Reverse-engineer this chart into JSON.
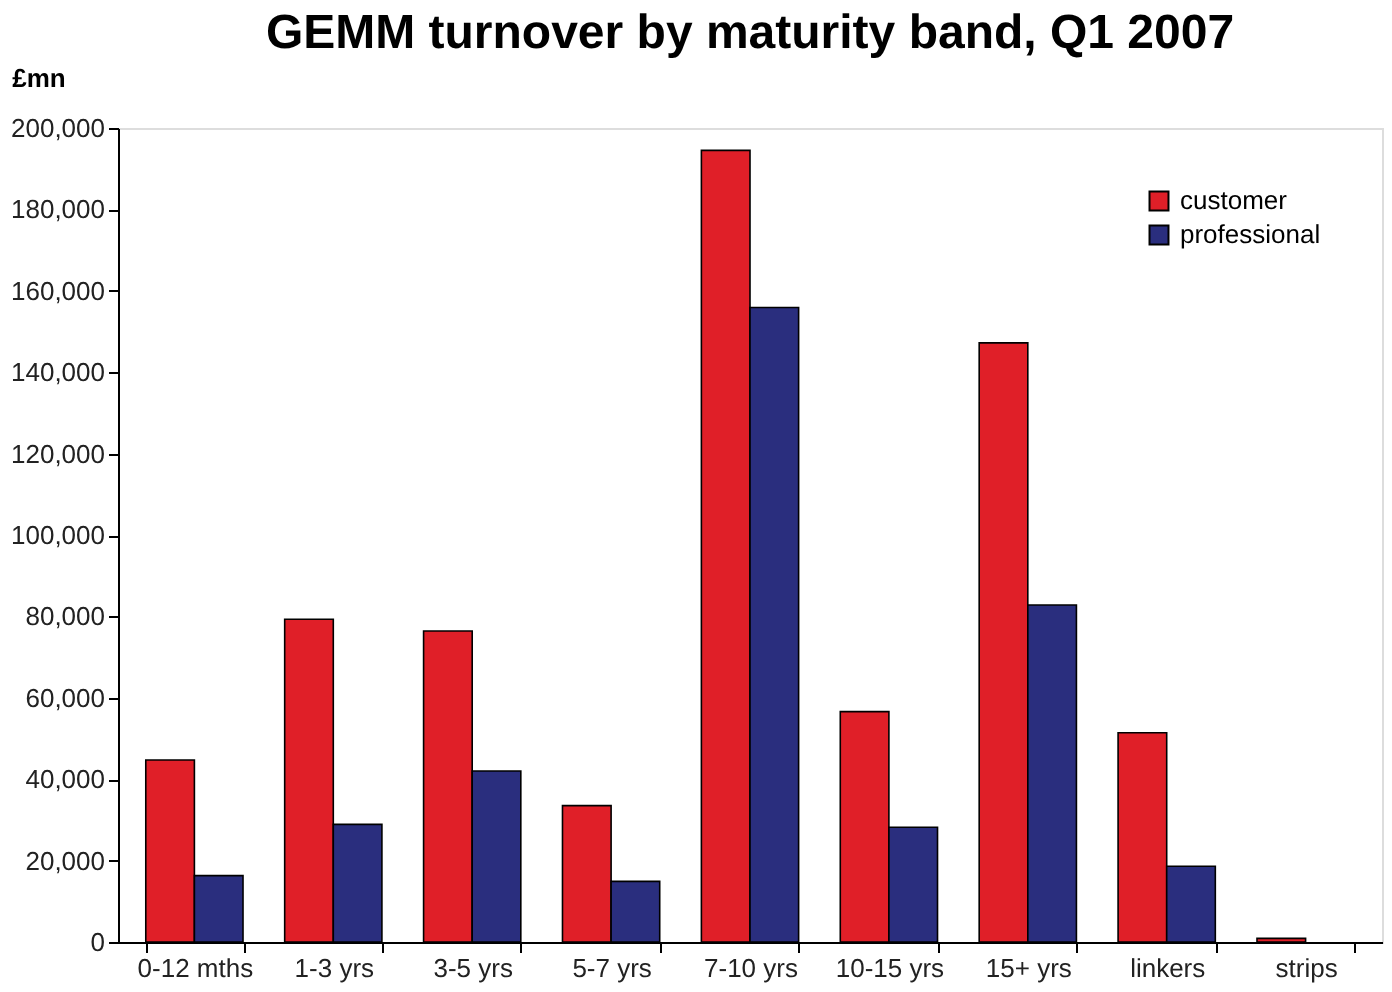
{
  "chart_data": {
    "type": "bar",
    "title": "GEMM turnover by maturity band, Q1 2007",
    "ylabel": "£mn",
    "categories": [
      "0-12 mths",
      "1-3 yrs",
      "3-5 yrs",
      "5-7 yrs",
      "7-10 yrs",
      "10-15 yrs",
      "15+ yrs",
      "linkers",
      "strips"
    ],
    "series": [
      {
        "name": "customer",
        "color": "#e01f28",
        "values": [
          44700,
          79300,
          76400,
          33500,
          194500,
          56600,
          147200,
          51400,
          900
        ]
      },
      {
        "name": "professional",
        "color": "#2a2e7e",
        "values": [
          16300,
          28900,
          42000,
          14900,
          155900,
          28200,
          82800,
          18600,
          null
        ]
      }
    ],
    "ylim": [
      0,
      200000
    ],
    "yticks": [
      0,
      {
        "value": 20000,
        "label": "20,000"
      },
      {
        "value": 40000,
        "label": "40,000"
      },
      {
        "value": 60000,
        "label": "60,000"
      },
      {
        "value": 80000,
        "label": "80,000"
      },
      {
        "value": 100000,
        "label": "100,000"
      },
      {
        "value": 120000,
        "label": "120,000"
      },
      {
        "value": 140000,
        "label": "140,000"
      },
      {
        "value": 160000,
        "label": "160,000"
      },
      {
        "value": 180000,
        "label": "180,000"
      },
      {
        "value": 200000,
        "label": "200,000"
      }
    ],
    "grid": false,
    "legend": "top right"
  }
}
